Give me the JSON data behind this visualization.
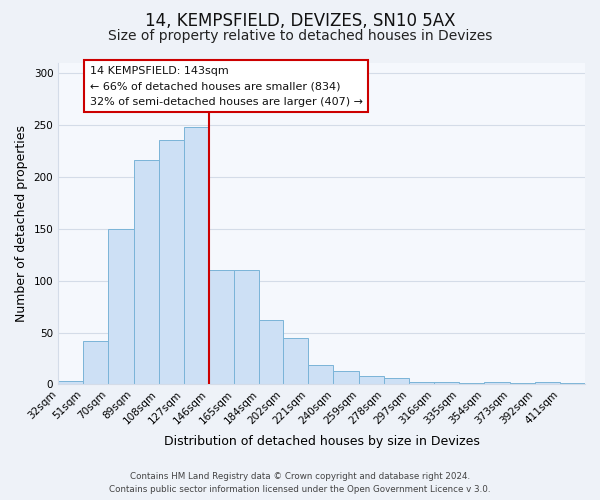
{
  "title": "14, KEMPSFIELD, DEVIZES, SN10 5AX",
  "subtitle": "Size of property relative to detached houses in Devizes",
  "xlabel": "Distribution of detached houses by size in Devizes",
  "ylabel": "Number of detached properties",
  "footer_line1": "Contains HM Land Registry data © Crown copyright and database right 2024.",
  "footer_line2": "Contains public sector information licensed under the Open Government Licence v 3.0.",
  "bin_labels": [
    "32sqm",
    "51sqm",
    "70sqm",
    "89sqm",
    "108sqm",
    "127sqm",
    "146sqm",
    "165sqm",
    "184sqm",
    "202sqm",
    "221sqm",
    "240sqm",
    "259sqm",
    "278sqm",
    "297sqm",
    "316sqm",
    "335sqm",
    "354sqm",
    "373sqm",
    "392sqm",
    "411sqm"
  ],
  "bar_values": [
    3,
    42,
    150,
    216,
    235,
    248,
    110,
    110,
    62,
    45,
    19,
    13,
    8,
    6,
    2,
    2,
    1,
    2,
    1,
    2,
    1
  ],
  "bin_edges": [
    32,
    51,
    70,
    89,
    108,
    127,
    146,
    165,
    184,
    202,
    221,
    240,
    259,
    278,
    297,
    316,
    335,
    354,
    373,
    392,
    411,
    430
  ],
  "bar_color": "#cde0f5",
  "bar_edge_color": "#7ab4d8",
  "vline_color": "#cc0000",
  "ylim": [
    0,
    310
  ],
  "yticks": [
    0,
    50,
    100,
    150,
    200,
    250,
    300
  ],
  "annotation_title": "14 KEMPSFIELD: 143sqm",
  "annotation_line1": "← 66% of detached houses are smaller (834)",
  "annotation_line2": "32% of semi-detached houses are larger (407) →",
  "annotation_box_color": "#ffffff",
  "annotation_box_edge_color": "#cc0000",
  "bg_color": "#eef2f8",
  "plot_bg_color": "#f5f8fd",
  "grid_color": "#d4dce8",
  "title_fontsize": 12,
  "subtitle_fontsize": 10,
  "axis_label_fontsize": 9,
  "tick_fontsize": 7.5
}
